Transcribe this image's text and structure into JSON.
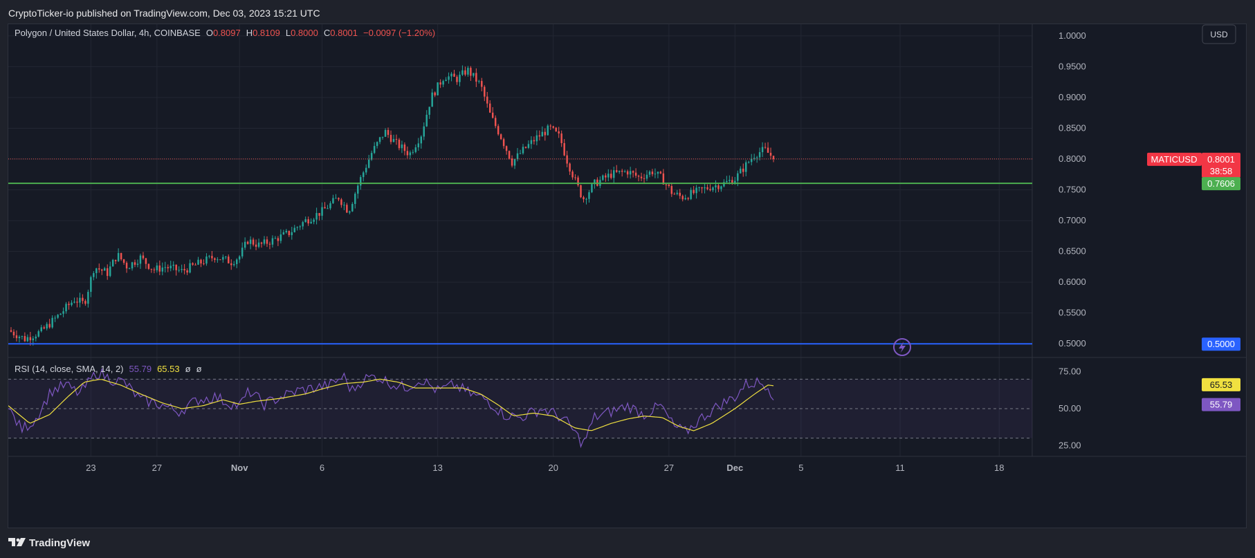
{
  "publisher_line": "CryptoTicker-io published on TradingView.com, Dec 03, 2023 15:21 UTC",
  "brand": "TradingView",
  "currency_button": "USD",
  "legend": {
    "title": "Polygon / United States Dollar, 4h, COINBASE",
    "o_label": "O",
    "o_value": "0.8097",
    "h_label": "H",
    "h_value": "0.8109",
    "l_label": "L",
    "l_value": "0.8000",
    "c_label": "C",
    "c_value": "0.8001",
    "change": "−0.0097 (−1.20%)"
  },
  "rsi_legend": {
    "title": "RSI (14, close, SMA, 14, 2)",
    "rsi_value": "55.79",
    "sma_value": "65.53",
    "extra1": "ø",
    "extra2": "ø"
  },
  "price_tags": {
    "symbol": "MATICUSD",
    "last": "0.8001",
    "countdown": "38:58",
    "green_line": "0.7606",
    "blue_line": "0.5000"
  },
  "rsi_tags": {
    "sma": "65.53",
    "rsi": "55.79"
  },
  "colors": {
    "background": "#161a25",
    "up": "#26a69a",
    "down": "#ef5350",
    "green_line": "#4caf50",
    "blue_line": "#2962ff",
    "rsi": "#7e57c2",
    "rsi_sma": "#f0e040"
  },
  "chart_data": [
    {
      "type": "candlestick",
      "title": "Polygon / United States Dollar, 4h, COINBASE",
      "ylim": [
        0.48,
        1.01
      ],
      "y_ticks": [
        "1.0000",
        "0.9500",
        "0.9000",
        "0.8500",
        "0.8000",
        "0.7500",
        "0.7000",
        "0.6500",
        "0.6000",
        "0.5500",
        "0.5000"
      ],
      "x_ticks": [
        "23",
        "27",
        "Nov",
        "6",
        "13",
        "20",
        "27",
        "Dec",
        "5",
        "11",
        "18"
      ],
      "x_tick_days": [
        23,
        27,
        32,
        37,
        44,
        51,
        58,
        62,
        66,
        72,
        78
      ],
      "x_range_days": [
        18,
        80
      ],
      "horizontal_lines": [
        0.7606,
        0.5
      ],
      "last_price": 0.8001,
      "anchors": [
        [
          18.0,
          0.522
        ],
        [
          19.0,
          0.508
        ],
        [
          20.0,
          0.52
        ],
        [
          21.0,
          0.545
        ],
        [
          22.0,
          0.572
        ],
        [
          22.6,
          0.565
        ],
        [
          23.2,
          0.625
        ],
        [
          24.0,
          0.615
        ],
        [
          24.6,
          0.645
        ],
        [
          25.2,
          0.625
        ],
        [
          26.0,
          0.64
        ],
        [
          26.8,
          0.62
        ],
        [
          27.5,
          0.625
        ],
        [
          28.5,
          0.618
        ],
        [
          29.5,
          0.63
        ],
        [
          30.5,
          0.642
        ],
        [
          31.5,
          0.633
        ],
        [
          32.0,
          0.642
        ],
        [
          32.5,
          0.668
        ],
        [
          33.2,
          0.66
        ],
        [
          34.0,
          0.668
        ],
        [
          35.0,
          0.68
        ],
        [
          36.0,
          0.7
        ],
        [
          37.0,
          0.715
        ],
        [
          38.0,
          0.738
        ],
        [
          38.6,
          0.715
        ],
        [
          39.2,
          0.76
        ],
        [
          40.0,
          0.81
        ],
        [
          40.8,
          0.845
        ],
        [
          41.5,
          0.825
        ],
        [
          42.3,
          0.808
        ],
        [
          43.0,
          0.84
        ],
        [
          43.6,
          0.9
        ],
        [
          44.4,
          0.935
        ],
        [
          45.2,
          0.93
        ],
        [
          45.8,
          0.945
        ],
        [
          46.6,
          0.92
        ],
        [
          47.2,
          0.87
        ],
        [
          47.8,
          0.838
        ],
        [
          48.5,
          0.795
        ],
        [
          49.2,
          0.815
        ],
        [
          50.0,
          0.835
        ],
        [
          50.8,
          0.85
        ],
        [
          51.4,
          0.835
        ],
        [
          51.8,
          0.8
        ],
        [
          52.4,
          0.76
        ],
        [
          52.8,
          0.735
        ],
        [
          53.5,
          0.76
        ],
        [
          54.5,
          0.775
        ],
        [
          55.5,
          0.78
        ],
        [
          56.2,
          0.77
        ],
        [
          57.0,
          0.78
        ],
        [
          57.6,
          0.768
        ],
        [
          58.2,
          0.745
        ],
        [
          58.8,
          0.738
        ],
        [
          59.5,
          0.745
        ],
        [
          60.5,
          0.755
        ],
        [
          61.3,
          0.76
        ],
        [
          62.0,
          0.768
        ],
        [
          62.6,
          0.788
        ],
        [
          63.2,
          0.808
        ],
        [
          63.8,
          0.815
        ],
        [
          64.4,
          0.8001
        ]
      ]
    },
    {
      "type": "line",
      "title": "RSI (14, close, SMA, 14, 2)",
      "ylim": [
        20,
        80
      ],
      "y_ticks": [
        "75.00",
        "50.00",
        "25.00"
      ],
      "bands": [
        70,
        50,
        30
      ],
      "series": [
        {
          "name": "RSI",
          "last": 55.79,
          "anchors": [
            [
              18.0,
              50
            ],
            [
              18.8,
              36
            ],
            [
              19.6,
              42
            ],
            [
              20.6,
              62
            ],
            [
              21.5,
              66
            ],
            [
              22.3,
              60
            ],
            [
              23.4,
              75
            ],
            [
              24.2,
              70
            ],
            [
              25.0,
              68
            ],
            [
              26.0,
              56
            ],
            [
              27.2,
              53
            ],
            [
              28.3,
              48
            ],
            [
              29.5,
              56
            ],
            [
              30.5,
              58
            ],
            [
              31.3,
              54
            ],
            [
              32.0,
              52
            ],
            [
              32.6,
              62
            ],
            [
              33.5,
              53
            ],
            [
              34.5,
              58
            ],
            [
              35.5,
              62
            ],
            [
              36.5,
              64
            ],
            [
              37.5,
              66
            ],
            [
              38.3,
              72
            ],
            [
              38.8,
              62
            ],
            [
              39.5,
              70
            ],
            [
              40.3,
              72
            ],
            [
              41.0,
              68
            ],
            [
              42.0,
              64
            ],
            [
              43.0,
              70
            ],
            [
              44.0,
              62
            ],
            [
              45.0,
              66
            ],
            [
              46.0,
              60
            ],
            [
              47.0,
              56
            ],
            [
              48.0,
              46
            ],
            [
              49.0,
              44
            ],
            [
              50.3,
              50
            ],
            [
              51.2,
              46
            ],
            [
              51.9,
              40
            ],
            [
              52.8,
              26
            ],
            [
              53.5,
              44
            ],
            [
              54.5,
              48
            ],
            [
              55.5,
              52
            ],
            [
              56.5,
              46
            ],
            [
              57.5,
              52
            ],
            [
              58.3,
              38
            ],
            [
              59.0,
              34
            ],
            [
              60.0,
              44
            ],
            [
              61.0,
              52
            ],
            [
              62.0,
              58
            ],
            [
              62.6,
              66
            ],
            [
              63.4,
              68
            ],
            [
              64.0,
              66
            ],
            [
              64.4,
              55.79
            ]
          ]
        },
        {
          "name": "RSI-based MA",
          "last": 65.53,
          "anchors": [
            [
              18.0,
              52
            ],
            [
              19.3,
              40
            ],
            [
              20.5,
              46
            ],
            [
              21.6,
              58
            ],
            [
              22.6,
              68
            ],
            [
              23.6,
              70
            ],
            [
              24.8,
              66
            ],
            [
              26.0,
              60
            ],
            [
              27.3,
              54
            ],
            [
              28.5,
              50
            ],
            [
              29.8,
              52
            ],
            [
              31.0,
              56
            ],
            [
              32.0,
              53
            ],
            [
              33.0,
              55
            ],
            [
              34.5,
              57
            ],
            [
              36.0,
              60
            ],
            [
              37.2,
              64
            ],
            [
              38.3,
              67
            ],
            [
              39.5,
              68
            ],
            [
              40.5,
              70
            ],
            [
              41.6,
              68
            ],
            [
              42.6,
              64
            ],
            [
              44.0,
              64
            ],
            [
              45.5,
              64
            ],
            [
              46.6,
              60
            ],
            [
              47.6,
              53
            ],
            [
              48.6,
              45
            ],
            [
              49.8,
              47
            ],
            [
              51.0,
              45
            ],
            [
              52.3,
              37
            ],
            [
              53.3,
              35
            ],
            [
              54.5,
              40
            ],
            [
              55.5,
              43
            ],
            [
              56.5,
              45
            ],
            [
              57.6,
              44
            ],
            [
              58.6,
              38
            ],
            [
              59.5,
              35
            ],
            [
              60.6,
              40
            ],
            [
              62.0,
              50
            ],
            [
              63.2,
              60
            ],
            [
              64.0,
              66
            ],
            [
              64.4,
              65.53
            ]
          ]
        }
      ]
    }
  ]
}
